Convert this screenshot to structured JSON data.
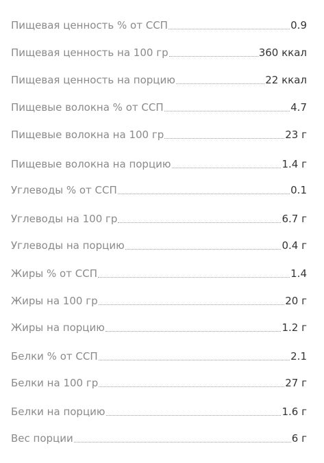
{
  "rows": [
    {
      "label": "Пищевая ценность % от ССП",
      "value": "0.9"
    },
    {
      "label": "Пищевая ценность на 100 гр",
      "value": "360 ккал"
    },
    {
      "label": "Пищевая ценность на порцию",
      "value": "22 ккал"
    },
    {
      "label": "Пищевые волокна % от ССП",
      "value": "4.7"
    },
    {
      "label": "Пищевые волокна на 100 гр",
      "value": "23 г"
    },
    {
      "label": "Пищевые волокна на порцию",
      "value": "1.4 г"
    },
    {
      "label": "Углеводы % от ССП",
      "value": "0.1"
    },
    {
      "label": "Углеводы на 100 гр",
      "value": "6.7 г"
    },
    {
      "label": "Углеводы на порцию",
      "value": "0.4 г"
    },
    {
      "label": "Жиры % от ССП",
      "value": "1.4"
    },
    {
      "label": "Жиры на 100 гр",
      "value": "20 г"
    },
    {
      "label": "Жиры на порцию",
      "value": "1.2 г"
    },
    {
      "label": "Белки % от ССП",
      "value": "2.1"
    },
    {
      "label": "Белки на 100 гр",
      "value": "27 г"
    },
    {
      "label": "Белки на порцию",
      "value": "1.6 г"
    },
    {
      "label": "Вес порции",
      "value": "6 г"
    }
  ]
}
